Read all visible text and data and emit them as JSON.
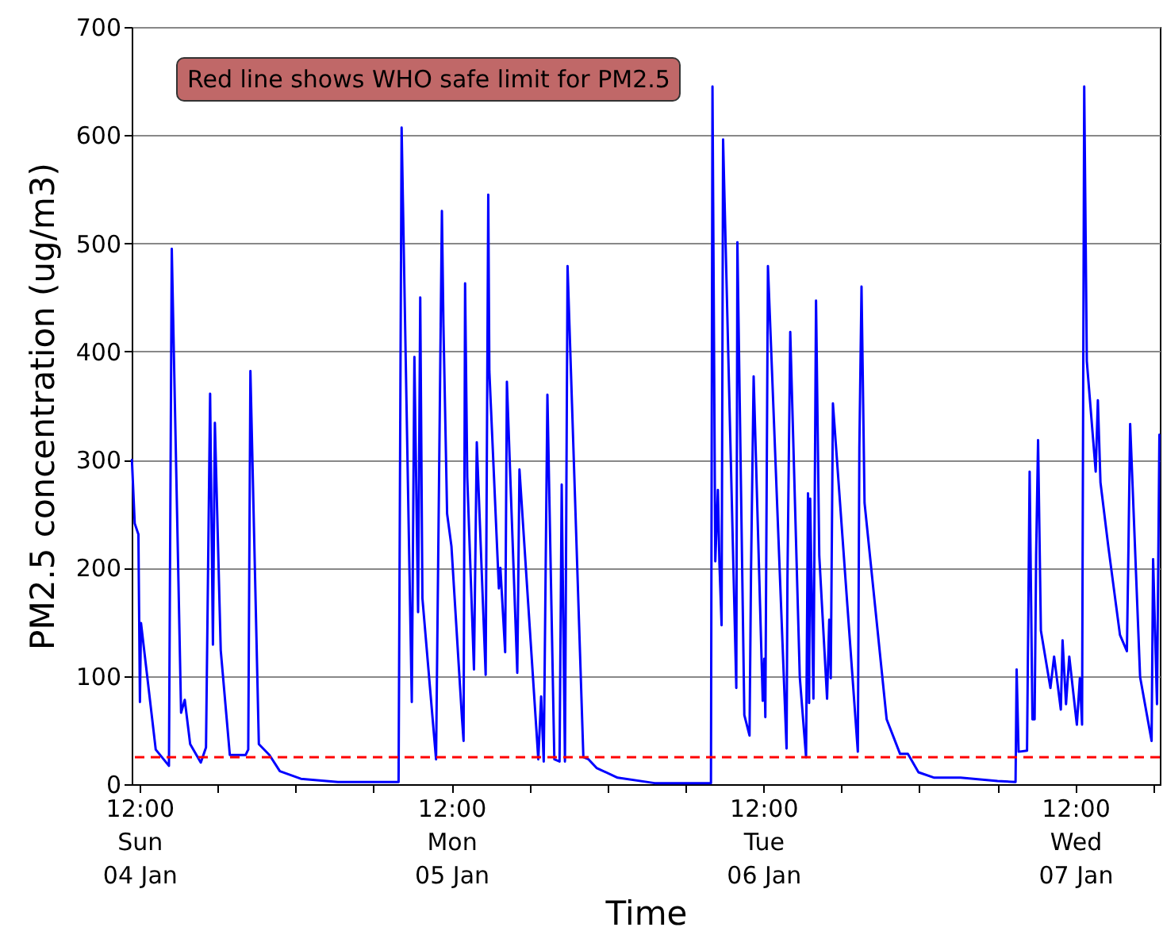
{
  "chart_data": {
    "type": "line",
    "xlabel": "Time",
    "ylabel": "PM2.5 concentration (ug/m3)",
    "annotations": [
      "Red line shows WHO safe limit for PM2.5"
    ],
    "xlim": [
      "--01-04T11:24",
      "--01-07T18:30"
    ],
    "xticks": [
      {
        "value": "--01-04T12:00",
        "label": "12:00\nSun\n04 Jan"
      },
      {
        "value": "--01-04T18:00",
        "label": null
      },
      {
        "value": "--01-05T00:00",
        "label": null
      },
      {
        "value": "--01-05T06:00",
        "label": null
      },
      {
        "value": "--01-05T12:00",
        "label": "12:00\nMon\n05 Jan"
      },
      {
        "value": "--01-05T18:00",
        "label": null
      },
      {
        "value": "--01-06T00:00",
        "label": null
      },
      {
        "value": "--01-06T06:00",
        "label": null
      },
      {
        "value": "--01-06T12:00",
        "label": "12:00\nTue\n06 Jan"
      },
      {
        "value": "--01-06T18:00",
        "label": null
      },
      {
        "value": "--01-07T00:00",
        "label": null
      },
      {
        "value": "--01-07T06:00",
        "label": null
      },
      {
        "value": "--01-07T12:00",
        "label": "12:00\nWed\n07 Jan"
      },
      {
        "value": "--01-07T18:00",
        "label": null
      }
    ],
    "ylim": [
      0,
      700
    ],
    "yticks": [
      0,
      100,
      200,
      300,
      400,
      500,
      600,
      700
    ],
    "grid": "y",
    "ref_lines": [
      {
        "axis": "y",
        "value": 25,
        "color": "#ff0000",
        "line_style": "dashed"
      }
    ],
    "x": [
      "--01-04T11:25",
      "--01-04T11:38",
      "--01-04T11:55",
      "--01-04T12:02",
      "--01-04T12:07",
      "--01-04T13:15",
      "--01-04T14:16",
      "--01-04T14:29",
      "--01-04T15:12",
      "--01-04T15:29",
      "--01-04T15:54",
      "--01-04T16:43",
      "--01-04T17:07",
      "--01-04T17:26",
      "--01-04T17:39",
      "--01-04T17:48",
      "--01-04T18:15",
      "--01-04T18:57",
      "--01-04T20:10",
      "--01-04T20:22",
      "--01-04T20:32",
      "--01-04T21:11",
      "--01-04T22:00",
      "--01-04T22:48",
      "--01-05T00:25",
      "--01-05T03:16",
      "--01-05T07:56",
      "--01-05T08:10",
      "--01-05T08:57",
      "--01-05T09:09",
      "--01-05T09:26",
      "--01-05T09:36",
      "--01-05T09:46",
      "--01-05T10:49",
      "--01-05T11:16",
      "--01-05T11:23",
      "--01-05T11:40",
      "--01-05T12:00",
      "--01-05T12:49",
      "--01-05T12:56",
      "--01-05T13:03",
      "--01-05T13:13",
      "--01-05T13:44",
      "--01-05T13:57",
      "--01-05T14:38",
      "--01-05T14:50",
      "--01-05T14:55",
      "--01-05T15:39",
      "--01-05T15:46",
      "--01-05T16:08",
      "--01-05T16:16",
      "--01-05T17:04",
      "--01-05T17:14",
      "--01-05T18:41",
      "--01-05T18:54",
      "--01-05T19:06",
      "--01-05T19:23",
      "--01-05T19:55",
      "--01-05T20:19",
      "--01-05T20:29",
      "--01-05T20:44",
      "--01-05T20:56",
      "--01-05T22:09",
      "--01-05T22:33",
      "--01-05T23:10",
      "--01-06T00:47",
      "--01-06T03:38",
      "--01-06T07:58",
      "--01-06T08:05",
      "--01-06T08:18",
      "--01-06T08:30",
      "--01-06T08:37",
      "--01-06T08:47",
      "--01-06T08:54",
      "--01-06T09:55",
      "--01-06T10:00",
      "--01-06T10:32",
      "--01-06T10:56",
      "--01-06T11:03",
      "--01-06T11:15",
      "--01-06T11:57",
      "--01-06T12:04",
      "--01-06T12:09",
      "--01-06T12:21",
      "--01-06T13:47",
      "--01-06T13:51",
      "--01-06T14:04",
      "--01-06T14:48",
      "--01-06T15:17",
      "--01-06T15:26",
      "--01-06T15:31",
      "--01-06T15:36",
      "--01-06T15:51",
      "--01-06T16:03",
      "--01-06T16:18",
      "--01-06T16:54",
      "--01-06T17:04",
      "--01-06T17:11",
      "--01-06T17:21",
      "--01-06T19:16",
      "--01-06T19:23",
      "--01-06T19:33",
      "--01-06T19:47",
      "--01-06T21:29",
      "--01-06T22:31",
      "--01-06T23:07",
      "--01-06T23:56",
      "--01-07T01:09",
      "--01-07T03:10",
      "--01-07T06:01",
      "--01-07T07:24",
      "--01-07T07:29",
      "--01-07T07:38",
      "--01-07T08:17",
      "--01-07T08:29",
      "--01-07T08:42",
      "--01-07T08:52",
      "--01-07T08:59",
      "--01-07T09:08",
      "--01-07T09:21",
      "--01-07T10:05",
      "--01-07T10:22",
      "--01-07T10:53",
      "--01-07T11:01",
      "--01-07T11:17",
      "--01-07T11:32",
      "--01-07T12:07",
      "--01-07T12:21",
      "--01-07T12:31",
      "--01-07T12:41",
      "--01-07T12:53",
      "--01-07T13:34",
      "--01-07T13:44",
      "--01-07T13:56",
      "--01-07T14:32",
      "--01-07T15:26",
      "--01-07T15:58",
      "--01-07T16:05",
      "--01-07T16:13",
      "--01-07T16:59",
      "--01-07T17:52",
      "--01-07T17:59",
      "--01-07T18:17",
      "--01-07T18:28"
    ],
    "series": [
      {
        "color": "#0000ff",
        "values": [
          300,
          241,
          231,
          76,
          149,
          32,
          17,
          495,
          66,
          78,
          37,
          20,
          34,
          361,
          129,
          334,
          124,
          27,
          27,
          32,
          382,
          37,
          27,
          12,
          5,
          2,
          2,
          607,
          76,
          395,
          159,
          450,
          172,
          23,
          530,
          425,
          250,
          220,
          60,
          40,
          463,
          284,
          106,
          316,
          101,
          545,
          382,
          181,
          200,
          122,
          372,
          103,
          291,
          23,
          81,
          21,
          360,
          23,
          21,
          277,
          21,
          479,
          25,
          23,
          15,
          6,
          1,
          1,
          645,
          206,
          272,
          205,
          147,
          596,
          89,
          501,
          64,
          45,
          198,
          377,
          77,
          116,
          62,
          479,
          33,
          189,
          418,
          99,
          25,
          269,
          75,
          264,
          79,
          447,
          211,
          79,
          152,
          98,
          352,
          30,
          311,
          460,
          260,
          60,
          28,
          28,
          11,
          6,
          6,
          3,
          2,
          106,
          30,
          31,
          289,
          60,
          60,
          211,
          318,
          142,
          89,
          118,
          69,
          133,
          74,
          118,
          55,
          98,
          55,
          645,
          391,
          289,
          355,
          279,
          220,
          138,
          123,
          216,
          333,
          99,
          40,
          208,
          74,
          323
        ]
      }
    ]
  }
}
